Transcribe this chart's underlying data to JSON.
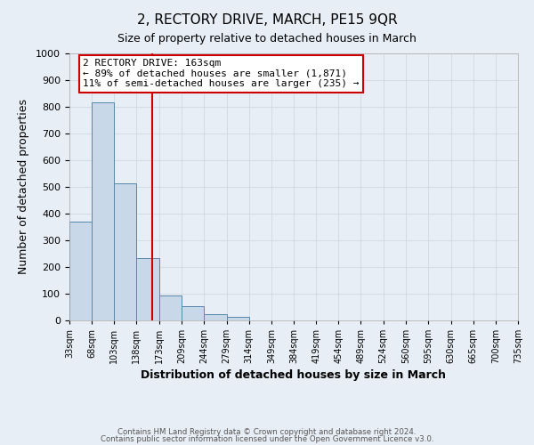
{
  "title": "2, RECTORY DRIVE, MARCH, PE15 9QR",
  "subtitle": "Size of property relative to detached houses in March",
  "xlabel": "Distribution of detached houses by size in March",
  "ylabel": "Number of detached properties",
  "bin_edges": [
    33,
    68,
    103,
    138,
    173,
    209,
    244,
    279,
    314,
    349,
    384,
    419,
    454,
    489,
    524,
    560,
    595,
    630,
    665,
    700,
    735
  ],
  "bin_labels": [
    "33sqm",
    "68sqm",
    "103sqm",
    "138sqm",
    "173sqm",
    "209sqm",
    "244sqm",
    "279sqm",
    "314sqm",
    "349sqm",
    "384sqm",
    "419sqm",
    "454sqm",
    "489sqm",
    "524sqm",
    "560sqm",
    "595sqm",
    "630sqm",
    "665sqm",
    "700sqm",
    "735sqm"
  ],
  "counts": [
    370,
    818,
    515,
    235,
    93,
    52,
    22,
    12,
    0,
    0,
    0,
    0,
    0,
    0,
    0,
    0,
    0,
    0,
    0,
    0
  ],
  "bar_color": "#c8d8e8",
  "bar_edgecolor": "#5588aa",
  "property_line_x": 163,
  "property_line_color": "#cc0000",
  "ylim": [
    0,
    1000
  ],
  "yticks": [
    0,
    100,
    200,
    300,
    400,
    500,
    600,
    700,
    800,
    900,
    1000
  ],
  "annotation_title": "2 RECTORY DRIVE: 163sqm",
  "annotation_line1": "← 89% of detached houses are smaller (1,871)",
  "annotation_line2": "11% of semi-detached houses are larger (235) →",
  "annotation_box_color": "#ffffff",
  "annotation_box_edgecolor": "#cc0000",
  "grid_color": "#d0d8e0",
  "background_color": "#e8eef5",
  "footer1": "Contains HM Land Registry data © Crown copyright and database right 2024.",
  "footer2": "Contains public sector information licensed under the Open Government Licence v3.0."
}
